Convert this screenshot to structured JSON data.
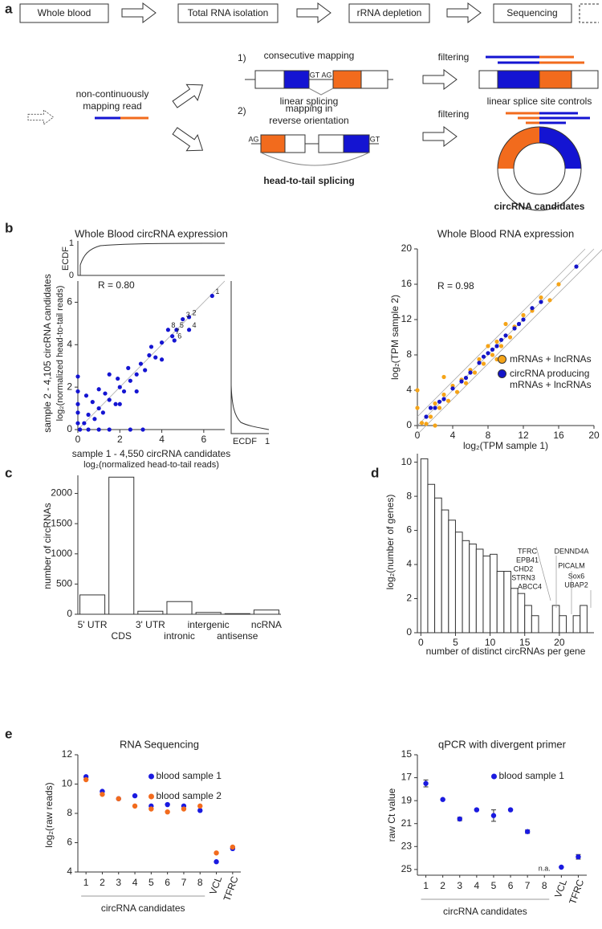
{
  "panel_labels": [
    "a",
    "b",
    "c",
    "d",
    "e"
  ],
  "workflow": {
    "steps": [
      "Whole blood",
      "Total RNA isolation",
      "rRNA depletion",
      "Sequencing"
    ],
    "read_label": [
      "non-continuously",
      "mapping read"
    ],
    "route_1": {
      "number": "1)",
      "title": "consecutive mapping",
      "donor": "GT",
      "acceptor": "AG",
      "caption": "linear splicing",
      "filter": "filtering",
      "result": "linear splice site controls"
    },
    "route_2": {
      "number": "2)",
      "title": [
        "mapping in",
        "reverse orientation"
      ],
      "acceptor": "AG",
      "donor": "GT",
      "caption": "head-to-tail splicing",
      "filter": "filtering",
      "result": "circRNA candidates"
    }
  },
  "chart_data": [
    {
      "type": "scatter",
      "title": "Whole Blood circRNA expression",
      "annotation": "R = 0.80",
      "x_label": [
        "sample 1 - 4,550 circRNA candidates",
        "log₂(normalized head-to-tail reads)"
      ],
      "y_label": [
        "sample 2 - 4,105 circRNA candidates",
        "log₂(normalized head-to-tail reads)"
      ],
      "ecdf_label": "ECDF",
      "ecdf_ticks": [
        0,
        1
      ],
      "xlim": [
        0,
        7
      ],
      "ylim": [
        0,
        7
      ],
      "xticks": [
        0,
        2,
        4,
        6
      ],
      "yticks": [
        0,
        2,
        4,
        6
      ],
      "series": [
        {
          "color": "#1414d2",
          "x": [
            0,
            0,
            0,
            0.1,
            0.5,
            1,
            1.5,
            2.5,
            0.3,
            0.5,
            0.8,
            1.0,
            1.2,
            0.7,
            1.5,
            1.8,
            1.3,
            2.0,
            2.2,
            1.9,
            2.5,
            2.8,
            2.4,
            3.0,
            3.2,
            3.4,
            3.7,
            3.5,
            4.0,
            2.0,
            1.0,
            0.4,
            2.8,
            1.5,
            0,
            0,
            3.1,
            4.0,
            6.4,
            5.3,
            5.0,
            5.3,
            4.7,
            4.6,
            4.5,
            4.3
          ],
          "values": [
            0.3,
            0.8,
            1.2,
            0,
            0,
            0,
            0,
            0,
            0.3,
            0.7,
            0.5,
            1.0,
            0.8,
            1.3,
            1.4,
            1.2,
            1.7,
            2.0,
            1.8,
            2.4,
            2.3,
            2.6,
            2.9,
            3.1,
            2.8,
            3.5,
            3.4,
            3.9,
            4.1,
            1.2,
            1.9,
            1.6,
            1.8,
            2.6,
            1.8,
            2.5,
            0,
            3.3,
            6.3,
            5.3,
            5.2,
            4.7,
            4.7,
            4.2,
            4.4,
            4.7
          ],
          "point_labels": [
            null,
            null,
            null,
            null,
            null,
            null,
            null,
            null,
            null,
            null,
            null,
            null,
            null,
            null,
            null,
            null,
            null,
            null,
            null,
            null,
            null,
            null,
            null,
            null,
            null,
            null,
            null,
            null,
            null,
            null,
            null,
            null,
            null,
            null,
            null,
            null,
            null,
            null,
            "1",
            "2",
            "3",
            "4",
            "5",
            "6",
            "7",
            "8"
          ]
        }
      ]
    },
    {
      "type": "scatter",
      "title": "Whole Blood RNA expression",
      "annotation": "R = 0.98",
      "x_label": "log₂(TPM sample 1)",
      "y_label": "log₂(TPM sample 2)",
      "xlim": [
        0,
        20
      ],
      "ylim": [
        0,
        20
      ],
      "xticks": [
        0,
        4,
        8,
        12,
        16,
        20
      ],
      "yticks": [
        0,
        4,
        8,
        12,
        16,
        20
      ],
      "series": [
        {
          "name": "mRNAs + lncRNAs",
          "color": "#f5a418",
          "x": [
            0,
            0,
            0.5,
            1,
            1.5,
            2,
            2,
            2.5,
            3,
            3.5,
            4,
            4.5,
            5,
            5.5,
            6,
            6.5,
            7,
            7.5,
            8,
            8.5,
            9,
            9.5,
            10,
            10.5,
            11,
            12,
            13,
            14,
            15,
            16,
            9,
            3
          ],
          "values": [
            2,
            4,
            0.3,
            0.2,
            1,
            0,
            2.5,
            2,
            3.5,
            2.8,
            4.5,
            3.8,
            5.2,
            4.8,
            6.3,
            6,
            7.5,
            7,
            9,
            8,
            9.5,
            9,
            11.5,
            10,
            11.2,
            12.5,
            13,
            14.5,
            14.2,
            16,
            7.5,
            5.5
          ]
        },
        {
          "name": "circRNA producing mRNAs + lncRNAs",
          "color": "#1414c8",
          "x": [
            1,
            2,
            3,
            4,
            5,
            6,
            7,
            7.5,
            8,
            8.5,
            9,
            9.5,
            10,
            11,
            11.5,
            12,
            13,
            14,
            18,
            2.5,
            5.5,
            1.5
          ],
          "values": [
            1,
            2,
            3,
            4.2,
            5,
            6,
            7.1,
            7.8,
            8.2,
            8.6,
            9,
            9.7,
            10.2,
            11,
            11.5,
            12,
            13.3,
            14,
            18,
            2.7,
            5.4,
            2
          ]
        }
      ]
    },
    {
      "type": "bar",
      "y_label": "number of circRNAs",
      "color": "#ffffff",
      "categories": [
        "5' UTR",
        "CDS",
        "3' UTR",
        "intronic",
        "intergenic",
        "antisense",
        "ncRNA"
      ],
      "values": [
        320,
        2270,
        50,
        210,
        30,
        10,
        70
      ],
      "ylim": [
        0,
        2300
      ],
      "yticks": [
        0,
        500,
        1000,
        1500,
        2000
      ]
    },
    {
      "type": "histogram",
      "x_label": "number of distinct circRNAs per gene",
      "y_label": "log₂(number of genes)",
      "color": "#ffffff",
      "bins": [
        0,
        1,
        2,
        3,
        4,
        5,
        6,
        7,
        8,
        9,
        10,
        11,
        12,
        13,
        14,
        15,
        16,
        17,
        18,
        19,
        20,
        21,
        22,
        23,
        24
      ],
      "values": [
        10.2,
        8.7,
        7.9,
        7.2,
        6.6,
        5.9,
        5.4,
        5.2,
        4.9,
        4.5,
        4.6,
        3.6,
        3.6,
        2.6,
        2.3,
        1.6,
        1.0,
        0,
        0,
        1.6,
        1.0,
        0,
        1.0,
        1.6
      ],
      "gene_labels": [
        "TFRC",
        "EPB41",
        "CHD2",
        "STRN3",
        "ABCC4",
        "DENND4A",
        "PICALM",
        "Sox6",
        "UBAP2"
      ],
      "xlim": [
        -0.5,
        25
      ],
      "ylim": [
        0,
        10.5
      ],
      "xticks": [
        0,
        5,
        10,
        15,
        20
      ],
      "yticks": [
        0,
        2,
        4,
        6,
        8,
        10
      ]
    },
    {
      "type": "dot",
      "title": "RNA Sequencing",
      "y_label": "log₂(raw reads)",
      "group_label": "circRNA candidates",
      "categories": [
        "1",
        "2",
        "3",
        "4",
        "5",
        "6",
        "7",
        "8",
        "VCL",
        "TFRC"
      ],
      "ylim": [
        4,
        12
      ],
      "yticks": [
        4,
        6,
        8,
        10,
        12
      ],
      "series": [
        {
          "name": "blood sample 1",
          "color": "#1a1ae0",
          "values": [
            10.5,
            9.5,
            9.0,
            9.2,
            8.5,
            8.6,
            8.5,
            8.2,
            4.7,
            5.6
          ]
        },
        {
          "name": "blood sample 2",
          "color": "#f26b1d",
          "values": [
            10.3,
            9.3,
            9.0,
            8.5,
            8.3,
            8.1,
            8.3,
            8.5,
            5.3,
            5.7
          ]
        }
      ]
    },
    {
      "type": "dot",
      "title": "qPCR with divergent primer",
      "y_label": "raw Ct value",
      "group_label": "circRNA candidates",
      "categories": [
        "1",
        "2",
        "3",
        "4",
        "5",
        "6",
        "7",
        "8",
        "VCL",
        "TFRC"
      ],
      "ylim": [
        25.5,
        15
      ],
      "yticks": [
        15,
        17,
        19,
        21,
        23,
        25
      ],
      "series": [
        {
          "name": "blood sample 1",
          "color": "#1a1ae0",
          "values": [
            17.5,
            18.9,
            20.6,
            19.8,
            20.3,
            19.8,
            21.7,
            null,
            24.8,
            23.9
          ],
          "errors": [
            0.3,
            0.05,
            0.15,
            0.05,
            0.5,
            0.05,
            0.15,
            null,
            0.05,
            0.2
          ],
          "value_labels": [
            null,
            null,
            null,
            null,
            null,
            null,
            null,
            "n.a.",
            null,
            null
          ]
        }
      ]
    }
  ]
}
